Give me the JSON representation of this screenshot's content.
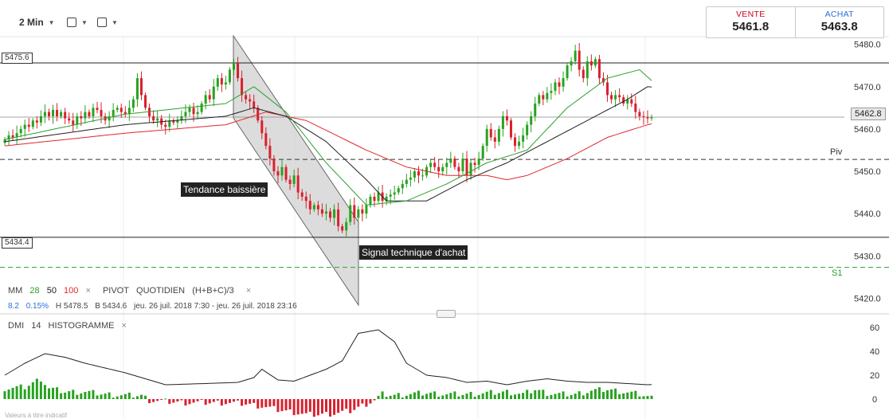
{
  "toolbar": {
    "interval": "2 Min"
  },
  "quote": {
    "sell_label": "VENTE",
    "sell_value": "5461.8",
    "buy_label": "ACHAT",
    "buy_value": "5463.8"
  },
  "legend_ma": {
    "name": "MM",
    "p1": "28",
    "p2": "50",
    "p3": "100",
    "pivot": "PIVOT",
    "pivot_type": "QUOTIDIEN",
    "pivot_formula": "(H+B+C)/3",
    "close": "×"
  },
  "info_line": {
    "change": "8.2",
    "change_pct": "0.15%",
    "high": "H 5478.5",
    "low": "B 5434.6",
    "range": "jeu. 26 juil. 2018 7:30 - jeu. 26 juil. 2018 23:16"
  },
  "legend_dmi": {
    "name": "DMI",
    "period": "14",
    "type": "HISTOGRAMME",
    "close": "×"
  },
  "annotations": {
    "trend": "Tendance baissière",
    "signal": "Signal technique d'achat"
  },
  "level_labels": {
    "high": "5475.6",
    "low": "5434.4"
  },
  "pivot_labels": {
    "piv": "Piv",
    "s1": "S1"
  },
  "last_price": "5462.8",
  "disclaimer": "Valeurs à titre indicatif",
  "colors": {
    "up": "#27a31f",
    "down": "#d9202e",
    "ma28": "#2ca02c",
    "ma50": "#222222",
    "ma100": "#e0282e",
    "s1": "#2ca02c",
    "price_axis": "#333333"
  },
  "chart_data": [
    {
      "type": "line",
      "title": "",
      "ylim": [
        5418,
        5482
      ],
      "y_ticks": [
        5420,
        5430,
        5440,
        5450,
        5460,
        5470,
        5480
      ],
      "close": [
        5457.5,
        5458.5,
        5458,
        5459,
        5460,
        5461,
        5460.5,
        5462,
        5461.5,
        5463,
        5464,
        5463,
        5464.5,
        5463,
        5464,
        5462.5,
        5462,
        5461,
        5463,
        5462.5,
        5464,
        5463,
        5465,
        5464.5,
        5463,
        5462,
        5463,
        5464.5,
        5465,
        5464,
        5463.5,
        5465,
        5467,
        5472,
        5468,
        5465,
        5463,
        5462,
        5462.5,
        5461,
        5460.5,
        5462,
        5461.5,
        5462,
        5463,
        5464,
        5465,
        5463.5,
        5464,
        5466,
        5468,
        5467,
        5470,
        5472,
        5470.5,
        5471,
        5474,
        5475.6,
        5472,
        5468,
        5467,
        5466.5,
        5465,
        5462,
        5459,
        5456,
        5453,
        5450,
        5449,
        5451,
        5448,
        5447,
        5449,
        5445,
        5444,
        5443,
        5441,
        5442,
        5441,
        5440,
        5440.5,
        5439,
        5441,
        5437,
        5436,
        5438,
        5442,
        5439,
        5441,
        5440,
        5442,
        5444,
        5443,
        5445,
        5443,
        5444,
        5444.5,
        5445,
        5446,
        5447,
        5448,
        5448.5,
        5450,
        5449,
        5449,
        5451,
        5452,
        5451,
        5450,
        5451,
        5452,
        5453,
        5451,
        5450,
        5453,
        5449,
        5452,
        5451.5,
        5453,
        5456,
        5460,
        5458,
        5457,
        5460,
        5463,
        5462,
        5458,
        5456,
        5457,
        5458.5,
        5461,
        5463,
        5466,
        5468,
        5467,
        5468.5,
        5469,
        5471,
        5470,
        5472,
        5475,
        5476,
        5478.5,
        5474,
        5472,
        5476,
        5475,
        5476.5,
        5472,
        5471,
        5468,
        5467,
        5468,
        5467.5,
        5466,
        5467,
        5466,
        5464,
        5463,
        5462.8,
        5462.5,
        5462.8
      ],
      "ma28_anchors": [
        [
          0,
          5457.5
        ],
        [
          30,
          5463.5
        ],
        [
          55,
          5466
        ],
        [
          62,
          5470
        ],
        [
          70,
          5464
        ],
        [
          80,
          5452
        ],
        [
          90,
          5442
        ],
        [
          100,
          5443
        ],
        [
          110,
          5447
        ],
        [
          120,
          5452
        ],
        [
          130,
          5455
        ],
        [
          140,
          5465
        ],
        [
          150,
          5472
        ],
        [
          158,
          5474
        ],
        [
          165,
          5468
        ],
        [
          171,
          5465
        ]
      ],
      "ma50_anchors": [
        [
          0,
          5457
        ],
        [
          30,
          5461
        ],
        [
          55,
          5463
        ],
        [
          62,
          5465
        ],
        [
          70,
          5463
        ],
        [
          80,
          5457
        ],
        [
          90,
          5448
        ],
        [
          95,
          5443
        ],
        [
          105,
          5443
        ],
        [
          115,
          5448
        ],
        [
          125,
          5452
        ],
        [
          135,
          5457
        ],
        [
          145,
          5462
        ],
        [
          155,
          5467
        ],
        [
          160,
          5470
        ],
        [
          171,
          5469
        ]
      ],
      "ma100_anchors": [
        [
          0,
          5456
        ],
        [
          30,
          5459
        ],
        [
          55,
          5461
        ],
        [
          65,
          5464
        ],
        [
          75,
          5462
        ],
        [
          90,
          5455
        ],
        [
          100,
          5451
        ],
        [
          110,
          5449
        ],
        [
          120,
          5449
        ],
        [
          125,
          5448
        ],
        [
          130,
          5449
        ],
        [
          140,
          5453
        ],
        [
          150,
          5458
        ],
        [
          160,
          5461
        ],
        [
          171,
          5463.5
        ]
      ],
      "pivot": 5452.8,
      "s1": 5427.3,
      "resistance_line": 5475.6,
      "support_line": 5434.4
    },
    {
      "type": "bar",
      "title": "",
      "ylim": [
        -8,
        64
      ],
      "y_ticks": [
        0,
        20,
        40,
        60
      ],
      "histogram_anchors": [
        [
          0,
          9
        ],
        [
          5,
          10
        ],
        [
          9,
          17
        ],
        [
          11,
          9
        ],
        [
          15,
          6
        ],
        [
          20,
          6
        ],
        [
          25,
          4
        ],
        [
          30,
          3
        ],
        [
          34,
          3
        ],
        [
          36,
          -1
        ],
        [
          40,
          -2
        ],
        [
          45,
          -3
        ],
        [
          50,
          -3
        ],
        [
          55,
          -3
        ],
        [
          60,
          -4
        ],
        [
          64,
          -6
        ],
        [
          68,
          -9
        ],
        [
          72,
          -11
        ],
        [
          75,
          -13
        ],
        [
          78,
          -13
        ],
        [
          82,
          -12
        ],
        [
          86,
          -10
        ],
        [
          90,
          -4
        ],
        [
          92,
          -1
        ],
        [
          94,
          4
        ],
        [
          97,
          3
        ],
        [
          100,
          4
        ],
        [
          105,
          5
        ],
        [
          110,
          4
        ],
        [
          115,
          4
        ],
        [
          120,
          5
        ],
        [
          125,
          6
        ],
        [
          129,
          4
        ],
        [
          132,
          8
        ],
        [
          135,
          5
        ],
        [
          138,
          4
        ],
        [
          142,
          4
        ],
        [
          146,
          7
        ],
        [
          150,
          8
        ],
        [
          154,
          6
        ],
        [
          158,
          4
        ],
        [
          161,
          1
        ],
        [
          163,
          -3
        ],
        [
          166,
          -5
        ],
        [
          168,
          -9
        ],
        [
          171,
          -10
        ]
      ],
      "adx_anchors": [
        [
          0,
          20
        ],
        [
          5,
          30
        ],
        [
          10,
          38
        ],
        [
          15,
          35
        ],
        [
          20,
          30
        ],
        [
          30,
          22
        ],
        [
          40,
          12
        ],
        [
          50,
          13
        ],
        [
          58,
          14
        ],
        [
          62,
          18
        ],
        [
          64,
          25
        ],
        [
          68,
          16
        ],
        [
          72,
          15
        ],
        [
          76,
          20
        ],
        [
          80,
          25
        ],
        [
          84,
          32
        ],
        [
          88,
          55
        ],
        [
          93,
          58
        ],
        [
          97,
          48
        ],
        [
          100,
          30
        ],
        [
          105,
          20
        ],
        [
          110,
          18
        ],
        [
          115,
          14
        ],
        [
          120,
          15
        ],
        [
          125,
          12
        ],
        [
          130,
          15
        ],
        [
          135,
          17
        ],
        [
          140,
          15
        ],
        [
          145,
          14
        ],
        [
          150,
          14
        ],
        [
          155,
          13
        ],
        [
          160,
          12
        ],
        [
          165,
          13
        ],
        [
          171,
          20
        ]
      ]
    }
  ]
}
